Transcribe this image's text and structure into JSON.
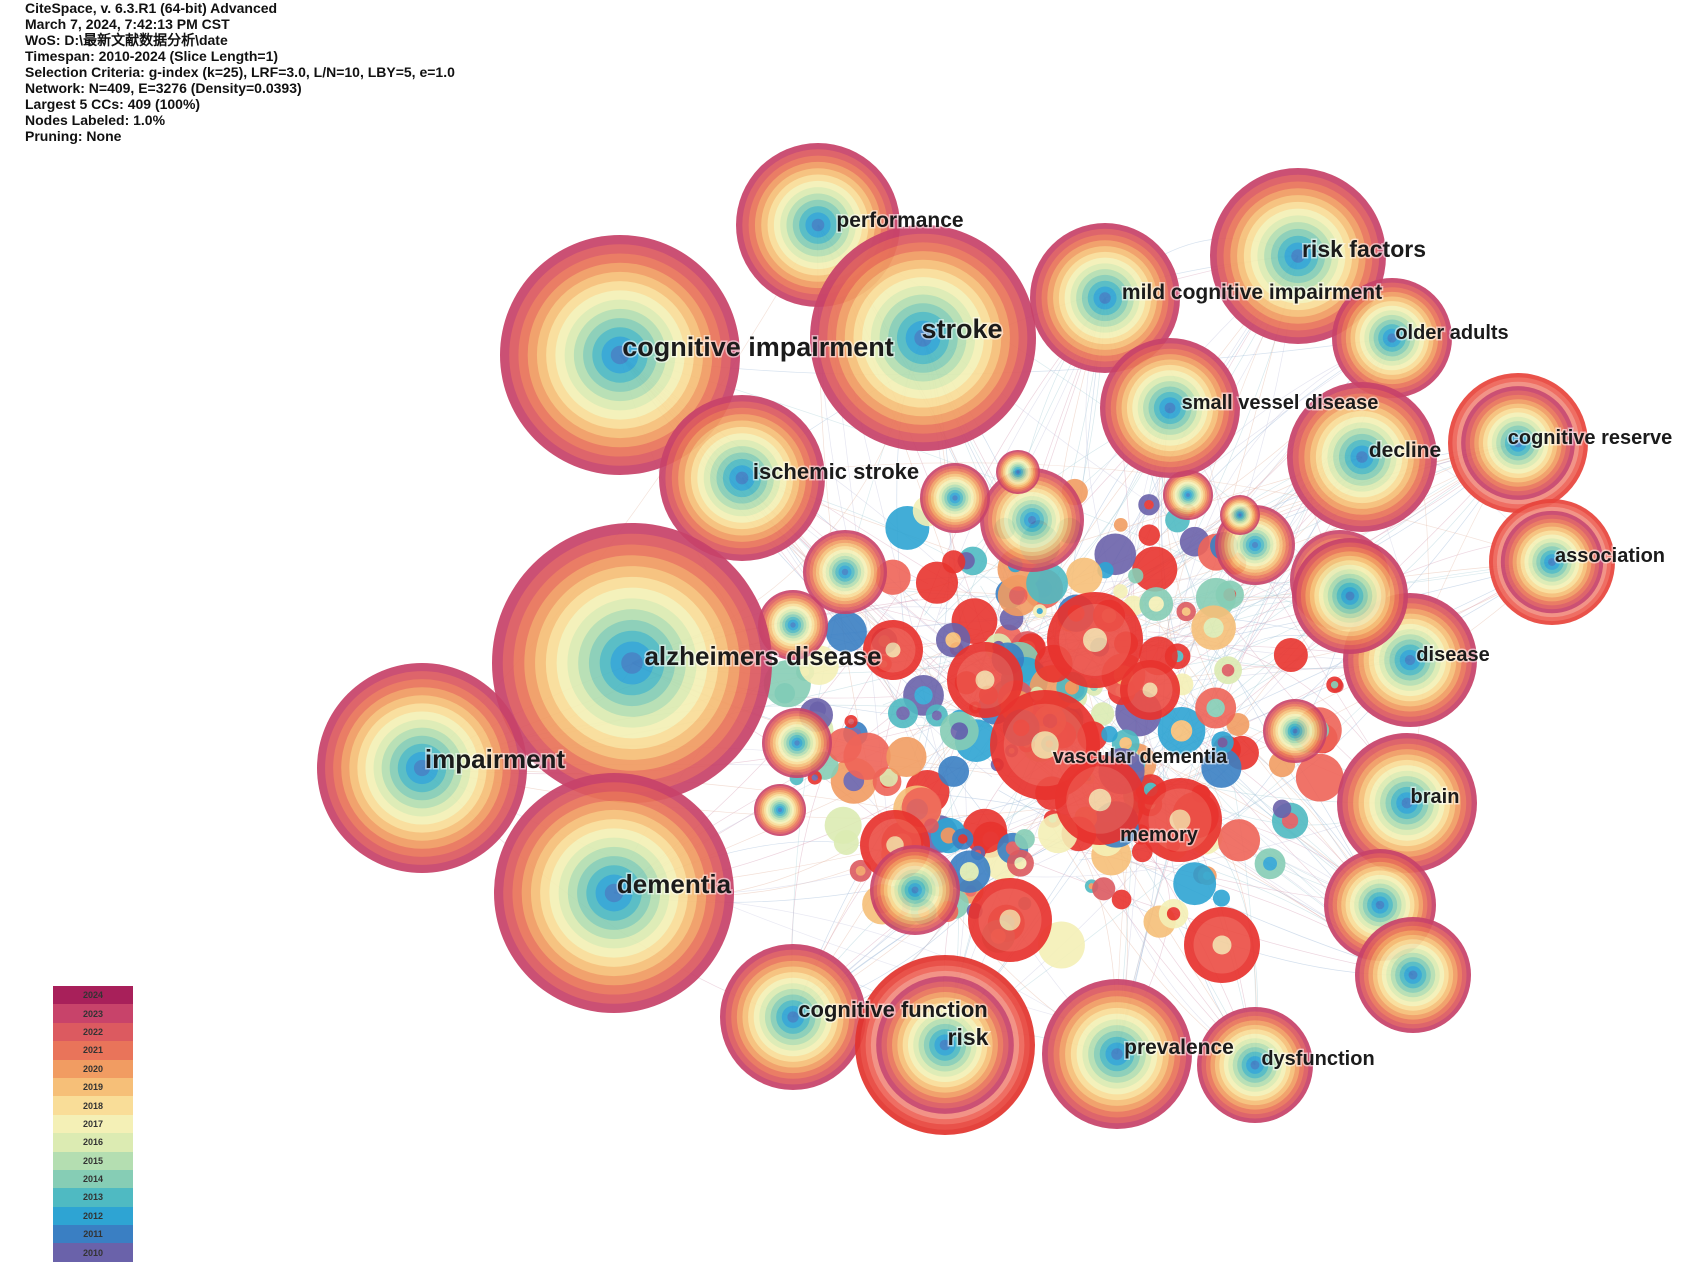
{
  "header": {
    "lines": [
      "CiteSpace, v. 6.3.R1 (64-bit) Advanced",
      "March 7, 2024, 7:42:13 PM CST",
      "WoS: D:\\最新文献数据分析\\date",
      "Timespan: 2010-2024 (Slice Length=1)",
      "Selection Criteria: g-index (k=25), LRF=3.0, L/N=10, LBY=5, e=1.0",
      "Network: N=409, E=3276 (Density=0.0393)",
      "Largest 5 CCs: 409 (100%)",
      "Nodes Labeled: 1.0%",
      "Pruning: None"
    ]
  },
  "legend": {
    "years": [
      "2024",
      "2023",
      "2022",
      "2021",
      "2020",
      "2019",
      "2018",
      "2017",
      "2016",
      "2015",
      "2014",
      "2013",
      "2012",
      "2011",
      "2010"
    ],
    "colors": [
      "#a8205a",
      "#c8436a",
      "#dc5a60",
      "#e9745a",
      "#f19c62",
      "#f6bf78",
      "#f9dd98",
      "#f4f0b6",
      "#dcebb2",
      "#b4deb1",
      "#86cdb5",
      "#4fbac2",
      "#2ea4d3",
      "#3a7fc3",
      "#6a62aa"
    ]
  },
  "keywords": [
    {
      "label": "performance",
      "innerColor": "#2ea4d3",
      "outerColor": "#c8436a",
      "redRings": 0
    },
    {
      "label": "cognitive impairment",
      "innerColor": "#2ea4d3",
      "outerColor": "#c8436a",
      "redRings": 0
    },
    {
      "label": "stroke",
      "innerColor": "#3a7fc3",
      "outerColor": "#c8436a",
      "redRings": 0
    },
    {
      "label": "mild cognitive impairment",
      "innerColor": "#2ea4d3",
      "outerColor": "#c8436a",
      "redRings": 0
    },
    {
      "label": "risk factors",
      "innerColor": "#3a7fc3",
      "outerColor": "#c8436a",
      "redRings": 0
    },
    {
      "label": "older adults",
      "innerColor": "#2ea4d3",
      "outerColor": "#c8436a",
      "redRings": 0
    },
    {
      "label": "small vessel disease",
      "innerColor": "#2ea4d3",
      "outerColor": "#c8436a",
      "redRings": 0
    },
    {
      "label": "decline",
      "innerColor": "#2ea4d3",
      "outerColor": "#c8436a",
      "redRings": 0
    },
    {
      "label": "cognitive reserve",
      "innerColor": "#f4f0b6",
      "outerColor": "#c8436a",
      "redRings": 3
    },
    {
      "label": "ischemic stroke",
      "innerColor": "#2ea4d3",
      "outerColor": "#c8436a",
      "redRings": 0
    },
    {
      "label": "association",
      "innerColor": "#f4f0b6",
      "outerColor": "#c8436a",
      "redRings": 3
    },
    {
      "label": "alzheimers disease",
      "innerColor": "#2ea4d3",
      "outerColor": "#c8436a",
      "redRings": 0
    },
    {
      "label": "disease",
      "innerColor": "#2ea4d3",
      "outerColor": "#c8436a",
      "redRings": 0
    },
    {
      "label": "impairment",
      "innerColor": "#2ea4d3",
      "outerColor": "#c8436a",
      "redRings": 0
    },
    {
      "label": "vascular dementia",
      "innerColor": "#e8332e",
      "outerColor": "#e8332e",
      "redRings": 0
    },
    {
      "label": "brain",
      "innerColor": "#2ea4d3",
      "outerColor": "#c8436a",
      "redRings": 0
    },
    {
      "label": "memory",
      "innerColor": "#e8332e",
      "outerColor": "#e8332e",
      "redRings": 0
    },
    {
      "label": "dementia",
      "innerColor": "#2ea4d3",
      "outerColor": "#c8436a",
      "redRings": 0
    },
    {
      "label": "cognitive function",
      "innerColor": "#2ea4d3",
      "outerColor": "#c8436a",
      "redRings": 0
    },
    {
      "label": "risk",
      "innerColor": "#2ea4d3",
      "outerColor": "#e8332e",
      "redRings": 4
    },
    {
      "label": "prevalence",
      "innerColor": "#2ea4d3",
      "outerColor": "#c8436a",
      "redRings": 0
    },
    {
      "label": "dysfunction",
      "innerColor": "#2ea4d3",
      "outerColor": "#c8436a",
      "redRings": 0
    }
  ]
}
